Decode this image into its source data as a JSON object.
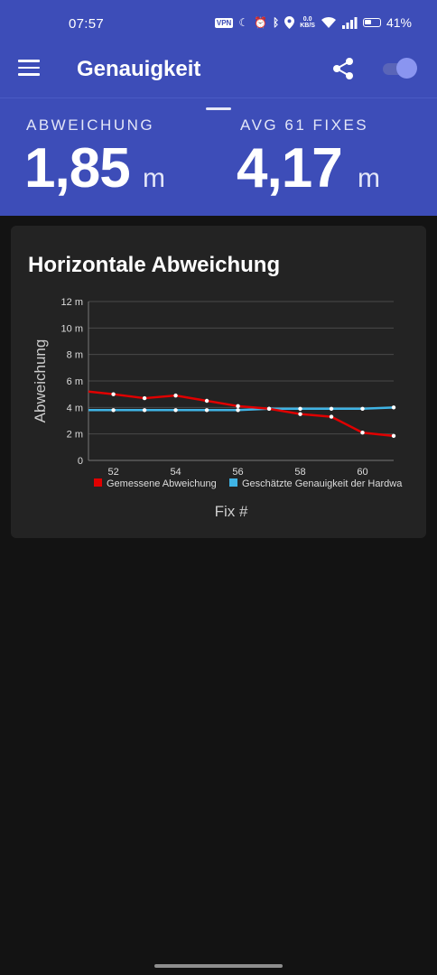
{
  "status_bar": {
    "time": "07:57",
    "vpn": "VPN",
    "net_speed": "0.0",
    "net_unit": "KB/S",
    "battery": "41%"
  },
  "app_bar": {
    "title": "Genauigkeit"
  },
  "stats": {
    "deviation_label": "ABWEICHUNG",
    "deviation_value": "1,85",
    "deviation_unit": "m",
    "avg_label": "AVG 61 FIXES",
    "avg_value": "4,17",
    "avg_unit": "m"
  },
  "card": {
    "title": "Horizontale Abweichung"
  },
  "chart_data": {
    "type": "line",
    "ylabel": "Abweichung",
    "xlabel": "Fix #",
    "ylim": [
      0,
      12
    ],
    "xlim": [
      51.2,
      61
    ],
    "y_ticks": [
      "12 m",
      "10 m",
      "8 m",
      "6 m",
      "4 m",
      "2 m",
      "0"
    ],
    "y_tick_values": [
      12,
      10,
      8,
      6,
      4,
      2,
      0
    ],
    "x_ticks": [
      "52",
      "54",
      "56",
      "58",
      "60"
    ],
    "x_tick_values": [
      52,
      54,
      56,
      58,
      60
    ],
    "grid": true,
    "legend_position": "bottom",
    "series": [
      {
        "name": "Gemessene Abweichung",
        "color": "#e00000",
        "x": [
          51.2,
          52,
          53,
          54,
          55,
          56,
          57,
          58,
          59,
          60,
          61
        ],
        "y": [
          5.2,
          5.0,
          4.7,
          4.9,
          4.5,
          4.1,
          3.9,
          3.5,
          3.3,
          2.1,
          1.85
        ]
      },
      {
        "name": "Geschätzte Genauigkeit der Hardware",
        "legend_text": "Geschätzte Genauigkeit der Hardwa",
        "color": "#3fb4e5",
        "x": [
          51.2,
          52,
          53,
          54,
          55,
          56,
          57,
          58,
          59,
          60,
          61
        ],
        "y": [
          3.8,
          3.8,
          3.8,
          3.8,
          3.8,
          3.8,
          3.9,
          3.9,
          3.9,
          3.9,
          4.0
        ]
      }
    ]
  }
}
